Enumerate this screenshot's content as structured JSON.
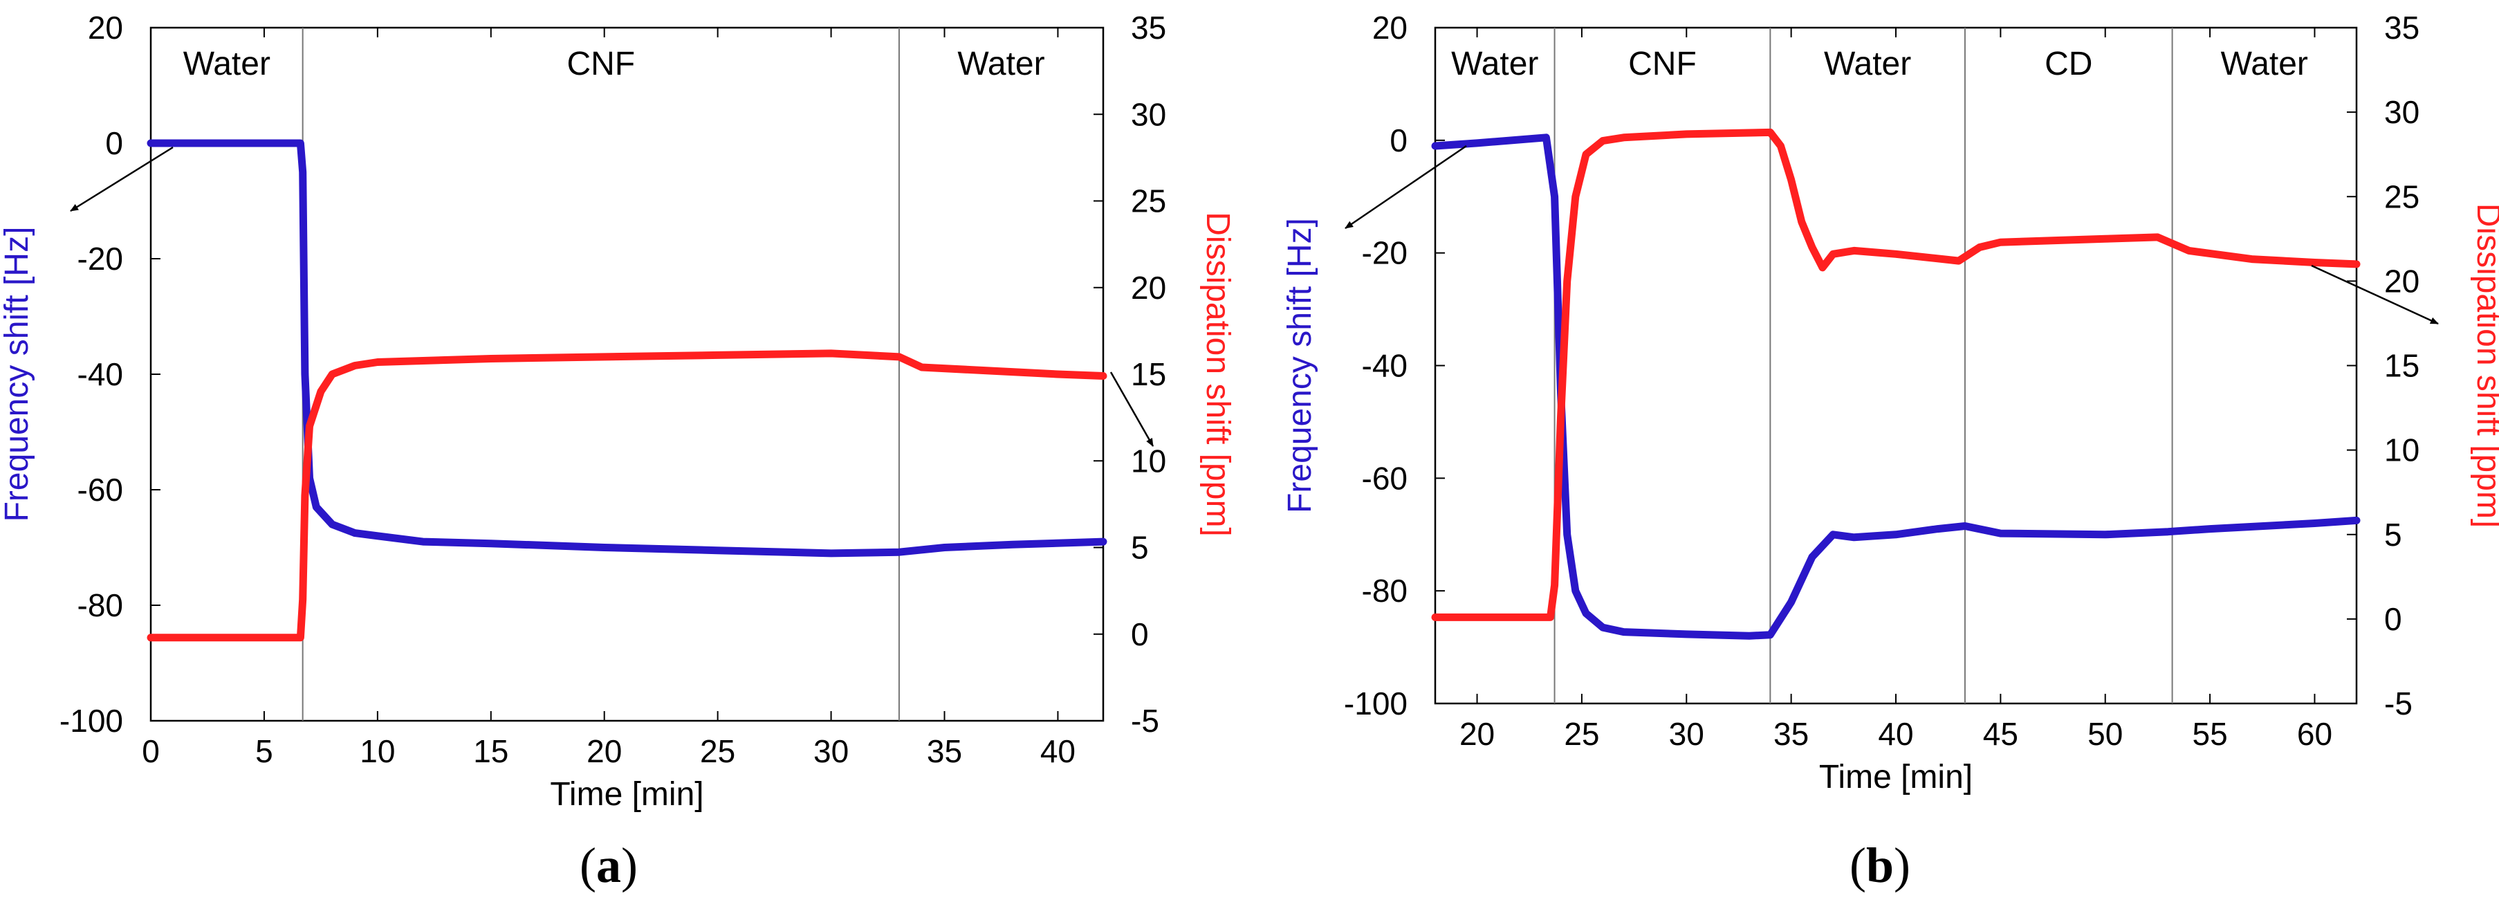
{
  "colors": {
    "frequency": "#2a17c8",
    "dissipation": "#ff2020",
    "axis": "#000000",
    "divider": "#777777"
  },
  "chart_data": [
    {
      "type": "line",
      "panel_label": "a",
      "xlabel": "Time [min]",
      "ylabel_left": "Frequency shift [Hz]",
      "ylabel_right": "Dissipation shift [ppm]",
      "xlim": [
        0,
        42
      ],
      "ylim_left": [
        -100,
        20
      ],
      "ylim_right": [
        -5,
        35
      ],
      "xticks": [
        "0",
        "5",
        "10",
        "15",
        "20",
        "25",
        "30",
        "35",
        "40"
      ],
      "xtick_values": [
        0,
        5,
        10,
        15,
        20,
        25,
        30,
        35,
        40
      ],
      "yticks_left": [
        "-100",
        "-80",
        "-60",
        "-40",
        "-20",
        "0",
        "20"
      ],
      "ytick_left_values": [
        -100,
        -80,
        -60,
        -40,
        -20,
        0,
        20
      ],
      "yticks_right": [
        "-5",
        "0",
        "5",
        "10",
        "15",
        "20",
        "25",
        "30",
        "35"
      ],
      "ytick_right_values": [
        -5,
        0,
        5,
        10,
        15,
        20,
        25,
        30,
        35
      ],
      "regions": [
        {
          "label": "Water",
          "start": 0,
          "end": 6.7
        },
        {
          "label": "CNF",
          "start": 6.7,
          "end": 33
        },
        {
          "label": "Water",
          "start": 33,
          "end": 42
        }
      ],
      "series": [
        {
          "name": "Frequency shift",
          "axis": "left",
          "x": [
            0,
            6.6,
            6.7,
            6.8,
            7.0,
            7.3,
            8.0,
            9.0,
            10,
            12,
            15,
            20,
            25,
            30,
            33,
            35,
            38,
            42
          ],
          "y": [
            0,
            0,
            -5,
            -40,
            -58,
            -63,
            -66,
            -67.5,
            -68,
            -69,
            -69.3,
            -70,
            -70.5,
            -71,
            -70.8,
            -70,
            -69.5,
            -69
          ]
        },
        {
          "name": "Dissipation shift",
          "axis": "right",
          "x": [
            0,
            6.6,
            6.7,
            6.8,
            7.0,
            7.5,
            8.0,
            9.0,
            10,
            15,
            20,
            25,
            30,
            33,
            34,
            37,
            40,
            42
          ],
          "y": [
            -0.2,
            -0.2,
            2,
            8,
            12,
            14,
            15,
            15.5,
            15.7,
            15.9,
            16,
            16.1,
            16.2,
            16,
            15.4,
            15.2,
            15,
            14.9
          ]
        }
      ],
      "annotations": [
        "arrow from frequency trace to left axis",
        "arrow from dissipation trace to right axis"
      ]
    },
    {
      "type": "line",
      "panel_label": "b",
      "xlabel": "Time [min]",
      "ylabel_left": "Frequency shift [Hz]",
      "ylabel_right": "Dissipation shift [ppm]",
      "xlim": [
        18,
        62
      ],
      "ylim_left": [
        -100,
        20
      ],
      "ylim_right": [
        -5,
        35
      ],
      "xticks": [
        "20",
        "25",
        "30",
        "35",
        "40",
        "45",
        "50",
        "55",
        "60"
      ],
      "xtick_values": [
        20,
        25,
        30,
        35,
        40,
        45,
        50,
        55,
        60
      ],
      "yticks_left": [
        "-100",
        "-80",
        "-60",
        "-40",
        "-20",
        "0",
        "20"
      ],
      "ytick_left_values": [
        -100,
        -80,
        -60,
        -40,
        -20,
        0,
        20
      ],
      "yticks_right": [
        "-5",
        "0",
        "5",
        "10",
        "15",
        "20",
        "25",
        "30",
        "35"
      ],
      "ytick_right_values": [
        -5,
        0,
        5,
        10,
        15,
        20,
        25,
        30,
        35
      ],
      "regions": [
        {
          "label": "Water",
          "start": 18,
          "end": 23.7
        },
        {
          "label": "CNF",
          "start": 23.7,
          "end": 34
        },
        {
          "label": "Water",
          "start": 34,
          "end": 43.3
        },
        {
          "label": "CD",
          "start": 43.3,
          "end": 53.2
        },
        {
          "label": "Water",
          "start": 53.2,
          "end": 62
        }
      ],
      "series": [
        {
          "name": "Frequency shift",
          "axis": "left",
          "x": [
            18,
            20,
            23.3,
            23.7,
            24.0,
            24.3,
            24.7,
            25.2,
            26,
            27,
            30,
            33,
            34,
            35,
            36,
            37,
            38,
            40,
            42,
            43.3,
            45,
            50,
            53,
            55,
            60,
            62
          ],
          "y": [
            -1,
            -0.5,
            0.5,
            -10,
            -45,
            -70,
            -80,
            -84,
            -86.5,
            -87.3,
            -87.7,
            -88,
            -87.8,
            -82,
            -74,
            -70,
            -70.5,
            -70,
            -69,
            -68.5,
            -69.8,
            -70,
            -69.5,
            -69,
            -68,
            -67.5
          ]
        },
        {
          "name": "Dissipation shift",
          "axis": "right",
          "x": [
            18,
            23.5,
            23.7,
            24.0,
            24.3,
            24.7,
            25.2,
            26,
            27,
            30,
            34,
            34.5,
            35,
            35.5,
            36,
            36.5,
            37,
            38,
            40,
            43,
            44,
            45,
            50,
            52.5,
            54,
            57,
            60,
            62
          ],
          "y": [
            0.1,
            0.1,
            2,
            12,
            20,
            25,
            27.5,
            28.3,
            28.5,
            28.7,
            28.8,
            28,
            26,
            23.5,
            22,
            20.8,
            21.6,
            21.8,
            21.6,
            21.2,
            22,
            22.3,
            22.5,
            22.6,
            21.8,
            21.3,
            21.1,
            21
          ]
        }
      ],
      "annotations": [
        "arrow from frequency trace to left axis",
        "arrow from dissipation trace to right axis"
      ]
    }
  ]
}
